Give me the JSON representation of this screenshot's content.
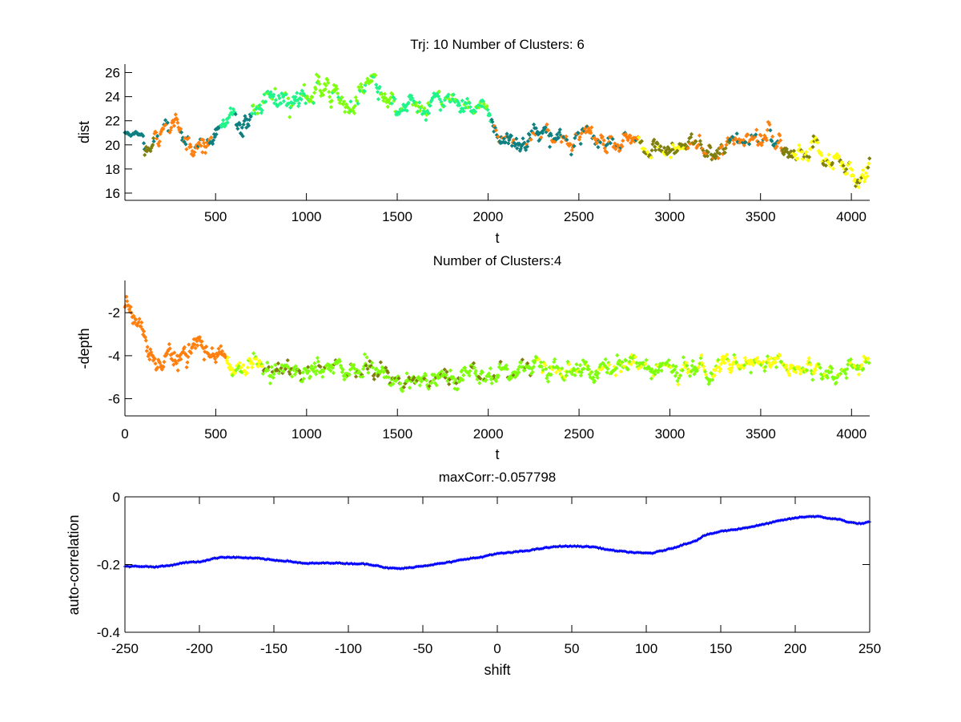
{
  "figure": {
    "background": "#ffffff"
  },
  "chart_data": [
    {
      "type": "scatter",
      "title": "Trj: 10 Number of Clusters: 6",
      "xlabel": "t",
      "ylabel": "dist",
      "xlim": [
        1,
        4101
      ],
      "ylim": [
        15.4,
        26.7
      ],
      "xticks": [
        500,
        1000,
        1500,
        2000,
        2500,
        3000,
        3500,
        4000
      ],
      "yticks": [
        16,
        18,
        20,
        22,
        24,
        26
      ],
      "box": false,
      "grid": false,
      "legend": "none",
      "n_clusters": 6,
      "cluster_colors": [
        "#0f7f7f",
        "#ff7f0f",
        "#7f7f0f",
        "#1ff58a",
        "#7fff0f",
        "#ffff0f"
      ],
      "trace": [
        [
          1,
          21.0
        ],
        [
          100,
          20.9
        ],
        [
          110,
          19.5
        ],
        [
          150,
          20.3
        ],
        [
          230,
          21.4
        ],
        [
          300,
          21.0
        ],
        [
          350,
          20.2
        ],
        [
          420,
          20.4
        ],
        [
          480,
          20.2
        ],
        [
          520,
          21.5
        ],
        [
          560,
          22.9
        ],
        [
          600,
          22.6
        ],
        [
          640,
          21.5
        ],
        [
          700,
          22.0
        ],
        [
          750,
          23.2
        ],
        [
          850,
          23.3
        ],
        [
          950,
          23.3
        ],
        [
          1000,
          24.2
        ],
        [
          1080,
          25.3
        ],
        [
          1150,
          24.5
        ],
        [
          1250,
          23.9
        ],
        [
          1380,
          24.5
        ],
        [
          1450,
          23.5
        ],
        [
          1600,
          23.3
        ],
        [
          1750,
          23.3
        ],
        [
          1900,
          23.2
        ],
        [
          2000,
          23.0
        ],
        [
          2050,
          21.0
        ],
        [
          2150,
          20.6
        ],
        [
          2250,
          21.0
        ],
        [
          2320,
          21.6
        ],
        [
          2420,
          20.6
        ],
        [
          2500,
          20.0
        ],
        [
          2650,
          20.2
        ],
        [
          2750,
          20.8
        ],
        [
          2850,
          19.8
        ],
        [
          3000,
          19.5
        ],
        [
          3100,
          20.2
        ],
        [
          3200,
          19.3
        ],
        [
          3300,
          19.6
        ],
        [
          3400,
          20.5
        ],
        [
          3550,
          20.8
        ],
        [
          3620,
          20.0
        ],
        [
          3700,
          18.8
        ],
        [
          3850,
          19.0
        ],
        [
          3950,
          18.6
        ],
        [
          4030,
          17.6
        ],
        [
          4100,
          18.8
        ]
      ],
      "segments": [
        {
          "t": [
            1,
            110
          ],
          "cluster": 0,
          "spread": 0.1
        },
        {
          "t": [
            110,
            160
          ],
          "cluster": 2,
          "spread": 0.3
        },
        {
          "t": [
            160,
            480
          ],
          "cluster": 1,
          "alt_cluster": 0,
          "spread": 0.5
        },
        {
          "t": [
            480,
            530
          ],
          "cluster": 0,
          "spread": 0.5
        },
        {
          "t": [
            530,
            610
          ],
          "cluster": 3,
          "spread": 0.4
        },
        {
          "t": [
            610,
            700
          ],
          "cluster": 0,
          "spread": 0.5
        },
        {
          "t": [
            700,
            1000
          ],
          "cluster": 3,
          "alt_cluster": 4,
          "spread": 0.6
        },
        {
          "t": [
            1000,
            1470
          ],
          "cluster": 4,
          "alt_cluster": 3,
          "spread": 0.6
        },
        {
          "t": [
            1470,
            2020
          ],
          "cluster": 3,
          "alt_cluster": 4,
          "spread": 0.5
        },
        {
          "t": [
            2020,
            2430
          ],
          "cluster": 0,
          "alt_cluster": 1,
          "spread": 0.5
        },
        {
          "t": [
            2430,
            2830
          ],
          "cluster": 1,
          "alt_cluster": 0,
          "spread": 0.5
        },
        {
          "t": [
            2830,
            3100
          ],
          "cluster": 2,
          "alt_cluster": 5,
          "spread": 0.5
        },
        {
          "t": [
            3100,
            3330
          ],
          "cluster": 2,
          "alt_cluster": 1,
          "spread": 0.5
        },
        {
          "t": [
            3330,
            3620
          ],
          "cluster": 1,
          "alt_cluster": 0,
          "spread": 0.5
        },
        {
          "t": [
            3620,
            3680
          ],
          "cluster": 2,
          "spread": 0.4
        },
        {
          "t": [
            3680,
            4101
          ],
          "cluster": 5,
          "alt_cluster": 2,
          "spread": 0.5
        }
      ]
    },
    {
      "type": "scatter",
      "title": "Number of Clusters:4",
      "xlabel": "t",
      "ylabel": "-depth",
      "xlim": [
        0,
        4100
      ],
      "ylim": [
        -6.8,
        -0.5
      ],
      "xticks": [
        0,
        500,
        1000,
        1500,
        2000,
        2500,
        3000,
        3500,
        4000
      ],
      "yticks": [
        -6,
        -4,
        -2
      ],
      "box": false,
      "grid": false,
      "legend": "none",
      "n_clusters": 4,
      "cluster_colors": [
        "#ff7f0f",
        "#ffff0f",
        "#7fff0f",
        "#7f7f0f"
      ],
      "trace": [
        [
          0,
          -1.7
        ],
        [
          30,
          -1.9
        ],
        [
          80,
          -3.0
        ],
        [
          130,
          -3.7
        ],
        [
          250,
          -3.9
        ],
        [
          300,
          -4.0
        ],
        [
          400,
          -3.5
        ],
        [
          460,
          -4.0
        ],
        [
          540,
          -3.8
        ],
        [
          580,
          -4.4
        ],
        [
          640,
          -4.6
        ],
        [
          700,
          -4.3
        ],
        [
          760,
          -4.8
        ],
        [
          900,
          -4.8
        ],
        [
          1100,
          -4.8
        ],
        [
          1300,
          -4.7
        ],
        [
          1500,
          -4.9
        ],
        [
          1700,
          -4.9
        ],
        [
          1900,
          -4.7
        ],
        [
          2100,
          -4.7
        ],
        [
          2300,
          -4.5
        ],
        [
          2500,
          -4.7
        ],
        [
          2700,
          -4.5
        ],
        [
          2900,
          -4.6
        ],
        [
          3100,
          -4.7
        ],
        [
          3300,
          -4.4
        ],
        [
          3500,
          -4.5
        ],
        [
          3700,
          -4.5
        ],
        [
          3850,
          -4.7
        ],
        [
          4000,
          -4.5
        ],
        [
          4100,
          -4.5
        ]
      ],
      "segments": [
        {
          "t": [
            0,
            560
          ],
          "cluster": 0,
          "spread": 0.3
        },
        {
          "t": [
            560,
            760
          ],
          "cluster": 1,
          "alt_cluster": 2,
          "spread": 0.3
        },
        {
          "t": [
            760,
            2250
          ],
          "cluster": 2,
          "alt_cluster": 3,
          "spread": 0.3
        },
        {
          "t": [
            2250,
            3270
          ],
          "cluster": 2,
          "alt_cluster": 1,
          "spread": 0.3
        },
        {
          "t": [
            3270,
            3820
          ],
          "cluster": 1,
          "alt_cluster": 2,
          "spread": 0.25
        },
        {
          "t": [
            3820,
            4100
          ],
          "cluster": 2,
          "alt_cluster": 1,
          "spread": 0.3
        }
      ]
    },
    {
      "type": "line",
      "title": "maxCorr:-0.057798",
      "xlabel": "shift",
      "ylabel": "auto-correlation",
      "xlim": [
        -250,
        250
      ],
      "ylim": [
        -0.4,
        0
      ],
      "xticks": [
        -250,
        -200,
        -150,
        -100,
        -50,
        0,
        50,
        100,
        150,
        200,
        250
      ],
      "yticks": [
        -0.4,
        -0.2,
        0
      ],
      "box": true,
      "grid": false,
      "legend": "none",
      "color": "#0000ff",
      "marker": "+",
      "series": [
        {
          "name": "auto-correlation",
          "x": [
            -250,
            -240,
            -230,
            -220,
            -210,
            -200,
            -190,
            -185,
            -175,
            -160,
            -150,
            -140,
            -130,
            -120,
            -110,
            -100,
            -90,
            -80,
            -75,
            -65,
            -60,
            -50,
            -43,
            -30,
            -22,
            -10,
            -6,
            0,
            10,
            20,
            32,
            42,
            53,
            65,
            75,
            85,
            96,
            104,
            110,
            118,
            128,
            134,
            139,
            150,
            160,
            166,
            177,
            188,
            195,
            204,
            209,
            215,
            220,
            230,
            236,
            241,
            245,
            250
          ],
          "y": [
            -0.206,
            -0.205,
            -0.207,
            -0.203,
            -0.194,
            -0.192,
            -0.182,
            -0.178,
            -0.179,
            -0.182,
            -0.187,
            -0.19,
            -0.197,
            -0.196,
            -0.195,
            -0.197,
            -0.198,
            -0.203,
            -0.21,
            -0.212,
            -0.21,
            -0.204,
            -0.2,
            -0.192,
            -0.184,
            -0.178,
            -0.172,
            -0.168,
            -0.164,
            -0.159,
            -0.151,
            -0.146,
            -0.146,
            -0.148,
            -0.157,
            -0.162,
            -0.166,
            -0.166,
            -0.16,
            -0.151,
            -0.137,
            -0.128,
            -0.114,
            -0.102,
            -0.096,
            -0.092,
            -0.083,
            -0.072,
            -0.066,
            -0.06,
            -0.058,
            -0.058,
            -0.062,
            -0.067,
            -0.075,
            -0.078,
            -0.079,
            -0.074
          ]
        }
      ],
      "max_value": -0.057798
    }
  ]
}
